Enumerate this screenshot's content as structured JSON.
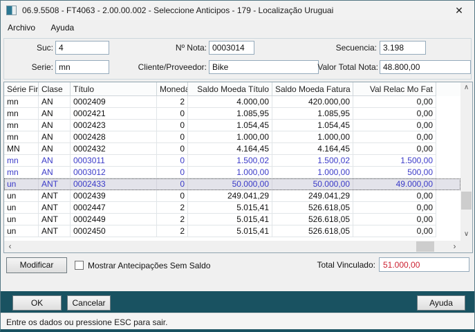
{
  "window": {
    "title": "06.9.5508 - FT4063 - 2.00.00.002 - Seleccione Anticipos - 179 - Localização Uruguai"
  },
  "icons": {
    "close": "✕",
    "scroll_up": "∧",
    "scroll_down": "∨",
    "scroll_left": "‹",
    "scroll_right": "›"
  },
  "menu": {
    "items": [
      {
        "label": "Archivo"
      },
      {
        "label": "Ayuda"
      }
    ]
  },
  "form": {
    "suc": {
      "label": "Suc:",
      "value": "4"
    },
    "nota": {
      "label": "Nº Nota:",
      "value": "0003014"
    },
    "secuencia": {
      "label": "Secuencia:",
      "value": "3.198"
    },
    "serie": {
      "label": "Serie:",
      "value": "mn"
    },
    "cliente": {
      "label": "Cliente/Proveedor:",
      "value": "Bike"
    },
    "valor": {
      "label": "Valor Total Nota:",
      "value": "48.800,00"
    }
  },
  "table": {
    "columns": [
      {
        "label": "Série Fin"
      },
      {
        "label": "Clase"
      },
      {
        "label": "Título"
      },
      {
        "label": "Moneda"
      },
      {
        "label": "Saldo Moeda Título"
      },
      {
        "label": "Saldo Moeda Fatura"
      },
      {
        "label": "Val Relac Mo Fat"
      }
    ],
    "rows": [
      {
        "cells": [
          "mn",
          "AN",
          "0002409",
          "2",
          "4.000,00",
          "420.000,00",
          "0,00"
        ],
        "linked": false,
        "selected": false
      },
      {
        "cells": [
          "mn",
          "AN",
          "0002421",
          "0",
          "1.085,95",
          "1.085,95",
          "0,00"
        ],
        "linked": false,
        "selected": false
      },
      {
        "cells": [
          "mn",
          "AN",
          "0002423",
          "0",
          "1.054,45",
          "1.054,45",
          "0,00"
        ],
        "linked": false,
        "selected": false
      },
      {
        "cells": [
          "mn",
          "AN",
          "0002428",
          "0",
          "1.000,00",
          "1.000,00",
          "0,00"
        ],
        "linked": false,
        "selected": false
      },
      {
        "cells": [
          "MN",
          "AN",
          "0002432",
          "0",
          "4.164,45",
          "4.164,45",
          "0,00"
        ],
        "linked": false,
        "selected": false
      },
      {
        "cells": [
          "mn",
          "AN",
          "0003011",
          "0",
          "1.500,02",
          "1.500,02",
          "1.500,00"
        ],
        "linked": true,
        "selected": false
      },
      {
        "cells": [
          "mn",
          "AN",
          "0003012",
          "0",
          "1.000,00",
          "1.000,00",
          "500,00"
        ],
        "linked": true,
        "selected": false
      },
      {
        "cells": [
          "un",
          "ANT",
          "0002433",
          "0",
          "50.000,00",
          "50.000,00",
          "49.000,00"
        ],
        "linked": true,
        "selected": true
      },
      {
        "cells": [
          "un",
          "ANT",
          "0002439",
          "0",
          "249.041,29",
          "249.041,29",
          "0,00"
        ],
        "linked": false,
        "selected": false
      },
      {
        "cells": [
          "un",
          "ANT",
          "0002447",
          "2",
          "5.015,41",
          "526.618,05",
          "0,00"
        ],
        "linked": false,
        "selected": false
      },
      {
        "cells": [
          "un",
          "ANT",
          "0002449",
          "2",
          "5.015,41",
          "526.618,05",
          "0,00"
        ],
        "linked": false,
        "selected": false
      },
      {
        "cells": [
          "un",
          "ANT",
          "0002450",
          "2",
          "5.015,41",
          "526.618,05",
          "0,00"
        ],
        "linked": false,
        "selected": false
      }
    ]
  },
  "footer": {
    "modify_label": "Modificar",
    "checkbox_label": "Mostrar Antecipações Sem Saldo",
    "checkbox_checked": false,
    "total_label": "Total Vinculado:",
    "total_value": "51.000,00"
  },
  "actions": {
    "ok": "OK",
    "cancel": "Cancelar",
    "help": "Ayuda"
  },
  "status_bar": {
    "message": "Entre os dados ou pressione ESC para sair."
  },
  "colors": {
    "accent_teal": "#195261",
    "link_blue": "#3a3ac8",
    "total_red": "#cc2030"
  }
}
